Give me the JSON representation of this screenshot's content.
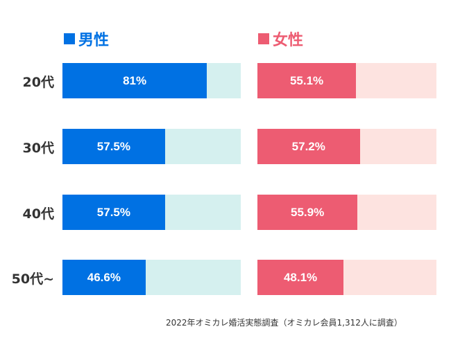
{
  "chart_data": {
    "type": "bar",
    "orientation": "horizontal",
    "categories": [
      "20代",
      "30代",
      "40代",
      "50代~"
    ],
    "series": [
      {
        "name": "男性",
        "values": [
          81,
          57.5,
          57.5,
          46.6
        ],
        "labels": [
          "81%",
          "57.5%",
          "57.5%",
          "46.6%"
        ],
        "color": "#0071e3",
        "track_color": "#d5f0ef"
      },
      {
        "name": "女性",
        "values": [
          55.1,
          57.2,
          55.9,
          48.1
        ],
        "labels": [
          "55.1%",
          "57.2%",
          "55.9%",
          "48.1%"
        ],
        "color": "#ed5c72",
        "track_color": "#fde3e0"
      }
    ],
    "xlim": [
      0,
      100
    ],
    "grid": false,
    "legend": "top",
    "annotation": "2022年オミカレ婚活実態調査（オミカレ会員1,312人に調査）"
  }
}
